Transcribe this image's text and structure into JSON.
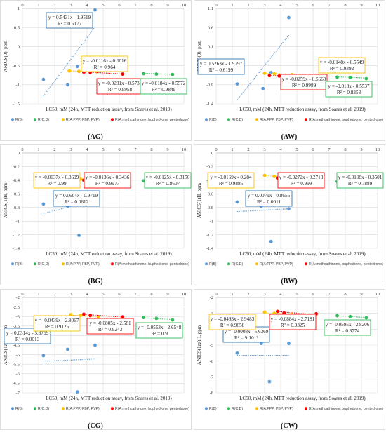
{
  "legend_labels": [
    "R(B)",
    "R(C,D)",
    "R(A:PPP, PBP, PVP)",
    "R(A:methcathinone, buphedrone, pentedrone)"
  ],
  "colors": {
    "R(B)": "#5b9bd5",
    "R(C,D)": "#2ebd59",
    "R(A:PPP, PBP, PVP)": "#ffc000",
    "R(A:methcathinone, buphedrone, pentedrone)": "#ff0000",
    "box_blue": "#2e75b6",
    "box_yellow": "#ffc000",
    "box_red": "#ff0000",
    "box_green": "#2ebd59"
  },
  "chart_data": [
    {
      "type": "scatter",
      "caption": "(AG)",
      "xlabel": "LC50, mM (24h, MTT reduction assay, from Soares et al. 2019)",
      "ylabel": "ANICS(0), ppm",
      "xlim": [
        0,
        10
      ],
      "ylim": [
        -1.5,
        1
      ],
      "grid": true,
      "legend": "bottom",
      "yticks": [
        "1",
        "0.5",
        "0",
        "-0.5",
        "-1",
        "-1.5"
      ],
      "xticks": [
        "0",
        "1",
        "2",
        "3",
        "4",
        "5",
        "6",
        "7",
        "8",
        "9",
        "10"
      ],
      "series": [
        {
          "key": "R(B)",
          "points": [
            [
              1.3,
              -0.86
            ],
            [
              2.8,
              -1.0
            ],
            [
              3.4,
              -0.52
            ],
            [
              4.5,
              0.96
            ]
          ],
          "trend": [
            [
              1.3,
              -1.3
            ],
            [
              4.5,
              0.52
            ]
          ]
        },
        {
          "key": "R(C,D)",
          "points": [
            [
              7.5,
              -0.71
            ],
            [
              8.3,
              -0.72
            ],
            [
              9.3,
              -0.73
            ]
          ],
          "trend": [
            [
              7.4,
              -0.7
            ],
            [
              9.4,
              -0.73
            ]
          ]
        },
        {
          "key": "R(A:PPP, PBP, PVP)",
          "points": [
            [
              2.9,
              -0.64
            ],
            [
              3.5,
              -0.65
            ],
            [
              4.6,
              -0.66
            ]
          ],
          "trend": [
            [
              2.8,
              -0.635
            ],
            [
              4.7,
              -0.66
            ]
          ]
        },
        {
          "key": "R(A:methcathinone, buphedrone, pentedrone)",
          "points": [
            [
              3.8,
              -0.67
            ],
            [
              4.2,
              -0.68
            ],
            [
              6.2,
              -0.72
            ]
          ],
          "trend": [
            [
              3.7,
              -0.66
            ],
            [
              6.3,
              -0.72
            ]
          ]
        }
      ],
      "annotations": [
        {
          "color": "box_blue",
          "lines": [
            "y = 0.5431x - 1.9519",
            "R² = 0.6177"
          ]
        },
        {
          "color": "box_yellow",
          "lines": [
            "y = -0.0116x - 0.6016",
            "R² = 0.964"
          ]
        },
        {
          "color": "box_red",
          "lines": [
            "y = -0.0231x - 0.5738",
            "R² = 0.9958"
          ]
        },
        {
          "color": "box_green",
          "lines": [
            "y = -0.0184x - 0.5572",
            "R² = 0.9849"
          ]
        }
      ]
    },
    {
      "type": "scatter",
      "caption": "(AW)",
      "xlabel": "LC50, mM (24h, MTT reduction assay, from Soares et al. 2019)",
      "ylabel": "ANICS(0), ppm",
      "xlim": [
        0,
        10
      ],
      "ylim": [
        -1.4,
        1.1
      ],
      "grid": true,
      "legend": "bottom",
      "yticks": [
        "1.1",
        "0.6",
        "0.1",
        "-0.4",
        "-0.9",
        "-1.4"
      ],
      "xticks": [
        "0",
        "1",
        "2",
        "3",
        "4",
        "5",
        "6",
        "7",
        "8",
        "9",
        "10"
      ],
      "series": [
        {
          "key": "R(B)",
          "points": [
            [
              1.3,
              -0.88
            ],
            [
              2.9,
              -1.0
            ],
            [
              3.4,
              -0.58
            ],
            [
              4.5,
              0.86
            ]
          ],
          "trend": [
            [
              1.3,
              -1.3
            ],
            [
              4.5,
              0.4
            ]
          ]
        },
        {
          "key": "R(C,D)",
          "points": [
            [
              7.5,
              -0.7
            ],
            [
              8.3,
              -0.71
            ],
            [
              9.3,
              -0.74
            ]
          ],
          "trend": [
            [
              7.4,
              -0.69
            ],
            [
              9.4,
              -0.725
            ]
          ]
        },
        {
          "key": "R(A:PPP, PBP, PVP)",
          "points": [
            [
              3.0,
              -0.6
            ],
            [
              3.6,
              -0.61
            ],
            [
              4.7,
              -0.63
            ]
          ],
          "trend": [
            [
              2.9,
              -0.598
            ],
            [
              4.8,
              -0.626
            ]
          ]
        },
        {
          "key": "R(A:methcathinone, buphedrone, pentedrone)",
          "points": [
            [
              3.3,
              -0.66
            ],
            [
              3.9,
              -0.67
            ],
            [
              6.3,
              -0.73
            ]
          ],
          "trend": [
            [
              3.2,
              -0.65
            ],
            [
              6.4,
              -0.73
            ]
          ]
        }
      ],
      "annotations": [
        {
          "color": "box_blue",
          "lines": [
            "y = 0.5263x - 1.9797",
            "R² = 0.6199"
          ]
        },
        {
          "color": "box_yellow",
          "lines": [
            "y = -0.0148x - 0.5549",
            "R² = 0.9392"
          ]
        },
        {
          "color": "box_red",
          "lines": [
            "y = -0.0259x - 0.5668",
            "R² = 0.9989"
          ]
        },
        {
          "color": "box_green",
          "lines": [
            "y = -0.018x - 0.5537",
            "R² = 0.8353"
          ]
        }
      ]
    },
    {
      "type": "scatter",
      "caption": "(BG)",
      "xlabel": "LC50, mM (24h, MTT reduction assay, from Soares et al. 2019)",
      "ylabel": "ANICS(1)H, ppm",
      "xlim": [
        0,
        10
      ],
      "ylim": [
        -1.4,
        0
      ],
      "grid": true,
      "legend": "bottom",
      "yticks": [
        "0",
        "-0.2",
        "-0.4",
        "-0.6",
        "-0.8",
        "-1",
        "-1.2",
        "-1.4"
      ],
      "xticks": [
        "0",
        "1",
        "2",
        "3",
        "4",
        "5",
        "6",
        "7",
        "8",
        "9",
        "10"
      ],
      "series": [
        {
          "key": "R(B)",
          "points": [
            [
              1.3,
              -0.75
            ],
            [
              2.8,
              -0.78
            ],
            [
              3.5,
              -1.21
            ],
            [
              3.0,
              -0.4
            ]
          ],
          "trend": [
            [
              1.3,
              -0.89
            ],
            [
              4.5,
              -0.69
            ]
          ]
        },
        {
          "key": "R(C,D)",
          "points": [
            [
              7.5,
              -0.41
            ],
            [
              8.3,
              -0.42
            ],
            [
              9.3,
              -0.43
            ]
          ],
          "trend": [
            [
              7.4,
              -0.405
            ],
            [
              9.4,
              -0.43
            ]
          ]
        },
        {
          "key": "R(A:PPP, PBP, PVP)",
          "points": [
            [
              2.9,
              -0.38
            ],
            [
              3.6,
              -0.385
            ],
            [
              4.7,
              -0.39
            ]
          ],
          "trend": [
            [
              2.8,
              -0.379
            ],
            [
              4.8,
              -0.387
            ]
          ]
        },
        {
          "key": "R(A:methcathinone, buphedrone, pentedrone)",
          "points": [
            [
              3.8,
              -0.4
            ],
            [
              4.2,
              -0.405
            ],
            [
              6.2,
              -0.4
            ]
          ],
          "trend": [
            [
              3.7,
              -0.398
            ],
            [
              6.3,
              -0.402
            ]
          ]
        }
      ],
      "annotations": [
        {
          "color": "box_blue",
          "lines": [
            "y = 0.0604x - 0.9719",
            "R² = 0.0612"
          ]
        },
        {
          "color": "box_yellow",
          "lines": [
            "y = -0.0037x - 0.3699",
            "R² = 0.99"
          ]
        },
        {
          "color": "box_red",
          "lines": [
            "y = -0.0136x - 0.3436",
            "R² = 0.9977"
          ]
        },
        {
          "color": "box_green",
          "lines": [
            "y = -0.0125x - 0.3156",
            "R² = 0.8607"
          ]
        }
      ]
    },
    {
      "type": "scatter",
      "caption": "(BW)",
      "xlabel": "LC50, mM (24h, MTT reduction assay, from Soares et al. 2019)",
      "ylabel": "ANICS(1)H, ppm",
      "xlim": [
        0,
        10
      ],
      "ylim": [
        -1.4,
        0
      ],
      "grid": true,
      "legend": "bottom",
      "yticks": [
        "0",
        "-0.2",
        "-0.4",
        "-0.6",
        "-0.8",
        "-1",
        "-1.2",
        "-1.4"
      ],
      "xticks": [
        "0",
        "1",
        "2",
        "3",
        "4",
        "5",
        "6",
        "7",
        "8",
        "9",
        "10"
      ],
      "series": [
        {
          "key": "R(B)",
          "points": [
            [
              1.3,
              -0.72
            ],
            [
              2.8,
              -0.78
            ],
            [
              3.4,
              -1.3
            ],
            [
              4.5,
              -0.82
            ]
          ],
          "trend": [
            [
              1.3,
              -0.86
            ],
            [
              4.5,
              -0.82
            ]
          ]
        },
        {
          "key": "R(C,D)",
          "points": [
            [
              7.5,
              -0.42
            ],
            [
              8.3,
              -0.43
            ],
            [
              9.3,
              -0.45
            ]
          ],
          "trend": [
            [
              7.4,
              -0.415
            ],
            [
              9.4,
              -0.445
            ]
          ]
        },
        {
          "key": "R(A:PPP, PBP, PVP)",
          "points": [
            [
              3.0,
              -0.33
            ],
            [
              3.6,
              -0.345
            ],
            [
              4.7,
              -0.36
            ]
          ],
          "trend": [
            [
              2.9,
              -0.33
            ],
            [
              4.8,
              -0.365
            ]
          ]
        },
        {
          "key": "R(A:methcathinone, buphedrone, pentedrone)",
          "points": [
            [
              3.8,
              -0.37
            ],
            [
              4.2,
              -0.38
            ],
            [
              6.2,
              -0.43
            ]
          ],
          "trend": [
            [
              3.7,
              -0.37
            ],
            [
              6.3,
              -0.43
            ]
          ]
        }
      ],
      "annotations": [
        {
          "color": "box_blue",
          "lines": [
            "y = 0.0079x - 0.8656",
            "R² = 0.0011"
          ]
        },
        {
          "color": "box_yellow",
          "lines": [
            "y = -0.0169x - 0.284",
            "R² = 0.9886"
          ]
        },
        {
          "color": "box_red",
          "lines": [
            "y = -0.0272x - 0.2713",
            "R² = 0.999"
          ]
        },
        {
          "color": "box_green",
          "lines": [
            "y = -0.0108x - 0.3501",
            "R² = 0.7889"
          ]
        }
      ]
    },
    {
      "type": "scatter",
      "caption": "(CG)",
      "xlabel": "LC50, mM (24h, MTT reduction assay, from Soares et al. 2019)",
      "ylabel": "ANICS(1zz)H, ppm",
      "xlim": [
        0,
        10
      ],
      "ylim": [
        -7,
        -2
      ],
      "grid": true,
      "legend": "bottom",
      "yticks": [
        "-2",
        "-2.5",
        "-3",
        "-3.5",
        "-4",
        "-4.5",
        "-5",
        "-5.5",
        "-6",
        "-6.5",
        "-7"
      ],
      "xticks": [
        "0",
        "1",
        "2",
        "3",
        "4",
        "5",
        "6",
        "7",
        "8",
        "9",
        "10"
      ],
      "series": [
        {
          "key": "R(B)",
          "points": [
            [
              1.3,
              -5.05
            ],
            [
              2.8,
              -4.72
            ],
            [
              3.4,
              -6.95
            ],
            [
              4.5,
              -4.5
            ]
          ],
          "trend": [
            [
              1.3,
              -5.34
            ],
            [
              4.5,
              -5.23
            ]
          ]
        },
        {
          "key": "R(C,D)",
          "points": [
            [
              7.5,
              -3.05
            ],
            [
              8.3,
              -3.1
            ],
            [
              9.3,
              -3.18
            ]
          ],
          "trend": [
            [
              7.4,
              -3.06
            ],
            [
              9.4,
              -3.17
            ]
          ]
        },
        {
          "key": "R(A:PPP, PBP, PVP)",
          "points": [
            [
              3.0,
              -2.9
            ],
            [
              3.6,
              -2.95
            ],
            [
              4.7,
              -3.02
            ]
          ],
          "trend": [
            [
              2.9,
              -2.93
            ],
            [
              4.8,
              -3.02
            ]
          ]
        },
        {
          "key": "R(A:methcathinone, buphedrone, pentedrone)",
          "points": [
            [
              3.8,
              -2.88
            ],
            [
              4.2,
              -2.95
            ],
            [
              6.2,
              -3.02
            ]
          ],
          "trend": [
            [
              3.7,
              -2.88
            ],
            [
              6.3,
              -3.04
            ]
          ]
        }
      ],
      "annotations": [
        {
          "color": "box_blue",
          "lines": [
            "y = 0.0314x - 5.3769",
            "R² = 0.0013"
          ]
        },
        {
          "color": "box_yellow",
          "lines": [
            "y = -0.0439x - 2.8067",
            "R² = 0.9125"
          ]
        },
        {
          "color": "box_red",
          "lines": [
            "y = -0.0805x - 2.581",
            "R² = 0.9243"
          ]
        },
        {
          "color": "box_green",
          "lines": [
            "y = -0.0553x - 2.6548",
            "R² = 0.9"
          ]
        }
      ]
    },
    {
      "type": "scatter",
      "caption": "(CW)",
      "xlabel": "LC50, mM (24h, MTT reduction assay, from Soares et al. 2019)",
      "ylabel": "ANICS(1zz)H, ppm",
      "xlim": [
        0,
        10
      ],
      "ylim": [
        -8,
        -2
      ],
      "grid": true,
      "legend": "bottom",
      "yticks": [
        "-2",
        "-3",
        "-4",
        "-5",
        "-6",
        "-7",
        "-8"
      ],
      "xticks": [
        "0",
        "1",
        "2",
        "3",
        "4",
        "5",
        "6",
        "7",
        "8",
        "9",
        "10"
      ],
      "series": [
        {
          "key": "R(B)",
          "points": [
            [
              1.3,
              -5.5
            ],
            [
              2.8,
              -4.9
            ],
            [
              3.3,
              -7.3
            ],
            [
              4.5,
              -4.9
            ]
          ],
          "trend": [
            [
              1.3,
              -5.64
            ],
            [
              4.5,
              -5.64
            ]
          ]
        },
        {
          "key": "R(C,D)",
          "points": [
            [
              7.5,
              -3.15
            ],
            [
              8.3,
              -3.2
            ],
            [
              9.3,
              -3.28
            ]
          ],
          "trend": [
            [
              7.4,
              -3.15
            ],
            [
              9.4,
              -3.27
            ]
          ]
        },
        {
          "key": "R(A:PPP, PBP, PVP)",
          "points": [
            [
              3.0,
              -2.92
            ],
            [
              3.6,
              -3.0
            ],
            [
              4.7,
              -3.05
            ]
          ],
          "trend": [
            [
              2.9,
              -2.96
            ],
            [
              4.8,
              -3.06
            ]
          ]
        },
        {
          "key": "R(A:methcathinone, buphedrone, pentedrone)",
          "points": [
            [
              3.8,
              -2.88
            ],
            [
              4.2,
              -2.98
            ],
            [
              6.2,
              -3.03
            ]
          ],
          "trend": [
            [
              3.7,
              -2.88
            ],
            [
              6.3,
              -3.1
            ]
          ]
        }
      ],
      "annotations": [
        {
          "color": "box_blue",
          "lines": [
            "y = -0.0008x - 5.6369",
            "R² = 9·10⁻⁷"
          ]
        },
        {
          "color": "box_yellow",
          "lines": [
            "y = -0.0493x - 2.9483",
            "R² = 0.9658"
          ]
        },
        {
          "color": "box_red",
          "lines": [
            "y = -0.0884x - 2.7181",
            "R² = 0.9325"
          ]
        },
        {
          "color": "box_green",
          "lines": [
            "y = -0.0595x - 2.8206",
            "R² = 0.8774"
          ]
        }
      ]
    }
  ]
}
